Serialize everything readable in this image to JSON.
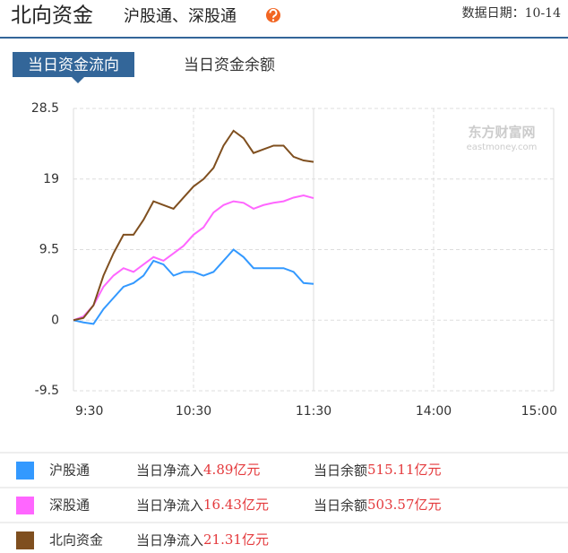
{
  "header": {
    "title": "北向资金",
    "subtitle": "沪股通、深股通",
    "date": "数据日期：10-14"
  },
  "tabs": [
    "当日资金流向",
    "当日资金余额"
  ],
  "watermark": {
    "cn": "东方财富网",
    "en": "eastmoney.com"
  },
  "chart_data": {
    "type": "line",
    "x": [
      0,
      5,
      10,
      15,
      20,
      25,
      30,
      35,
      40,
      45,
      50,
      55,
      60,
      65,
      70,
      75,
      80,
      85,
      90,
      95,
      100,
      105,
      110,
      115,
      120
    ],
    "xlim": [
      0,
      240
    ],
    "xticks": [
      {
        "value": 0,
        "label": "9:30"
      },
      {
        "value": 60,
        "label": "10:30"
      },
      {
        "value": 120,
        "label": "11:30"
      },
      {
        "value": 180,
        "label": "14:00"
      },
      {
        "value": 240,
        "label": "15:00"
      }
    ],
    "ylim": [
      -9.5,
      28.5
    ],
    "yticks": [
      28.5,
      19,
      9.5,
      0,
      -9.5
    ],
    "grid": true,
    "series": [
      {
        "name": "沪股通",
        "color": "#3399ff",
        "values": [
          0,
          -0.3,
          -0.5,
          1.5,
          3,
          4.5,
          5,
          6,
          8,
          7.5,
          6,
          6.5,
          6.5,
          6,
          6.5,
          8,
          9.5,
          8.5,
          7,
          7,
          7,
          7,
          6.5,
          5,
          4.89
        ]
      },
      {
        "name": "深股通",
        "color": "#ff66ff",
        "values": [
          0,
          0.5,
          2,
          4.5,
          6,
          7,
          6.5,
          7.5,
          8.5,
          8,
          9,
          10,
          11.5,
          12.5,
          14.5,
          15.5,
          16,
          15.8,
          15,
          15.5,
          15.8,
          16,
          16.5,
          16.8,
          16.43
        ]
      },
      {
        "name": "北向资金",
        "color": "#7f4f1f",
        "values": [
          0,
          0.3,
          2,
          6,
          9,
          11.5,
          11.5,
          13.5,
          16,
          15.5,
          15,
          16.5,
          18,
          19,
          20.5,
          23.5,
          25.5,
          24.5,
          22.5,
          23,
          23.5,
          23.5,
          22,
          21.5,
          21.31
        ]
      }
    ]
  },
  "legend_table": {
    "rows": [
      {
        "net_label": "当日净流入",
        "net": "4.89亿元",
        "balance_label": "当日余额",
        "balance": "515.11亿元"
      },
      {
        "net_label": "当日净流入",
        "net": "16.43亿元",
        "balance_label": "当日余额",
        "balance": "503.57亿元"
      },
      {
        "net_label": "当日净流入",
        "net": "21.31亿元"
      }
    ]
  }
}
